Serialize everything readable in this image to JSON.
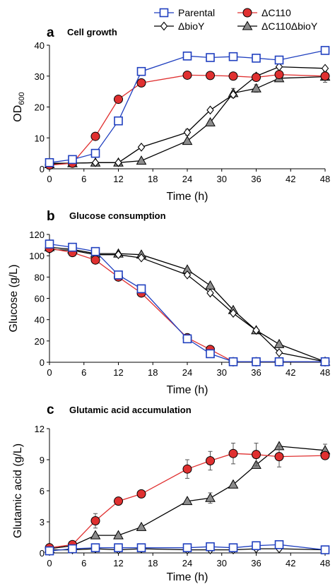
{
  "legend": {
    "items": [
      {
        "name": "Parental",
        "color": "#1f3fbf",
        "marker": "square"
      },
      {
        "name": "ΔC110",
        "color": "#e03030",
        "marker": "circle"
      },
      {
        "name": "ΔbioY",
        "color": "#000000",
        "marker": "diamond"
      },
      {
        "name": "ΔC110ΔbioY",
        "color": "#000000",
        "marker": "triangle"
      }
    ],
    "placement": "top"
  },
  "chart_data": [
    {
      "type": "line",
      "panel": "a",
      "title": "Cell growth",
      "xlabel": "Time (h)",
      "ylabel": "OD",
      "ylabel_sub": "600",
      "xlim": [
        0,
        48
      ],
      "ylim": [
        0,
        40
      ],
      "xticks": [
        0,
        6,
        12,
        18,
        24,
        30,
        36,
        42,
        48
      ],
      "yticks": [
        0,
        10,
        20,
        30,
        40
      ],
      "grid": false,
      "series": [
        {
          "name": "Parental",
          "x": [
            0,
            4,
            8,
            12,
            16,
            24,
            28,
            32,
            36,
            40,
            48
          ],
          "y": [
            2,
            3,
            5,
            15.5,
            31.5,
            36.5,
            36,
            36.3,
            35.8,
            35.2,
            38.3
          ],
          "err": [
            0,
            0,
            0,
            0,
            0,
            1,
            1,
            0,
            1,
            0,
            0
          ]
        },
        {
          "name": "ΔC110",
          "x": [
            0,
            4,
            8,
            12,
            16,
            24,
            28,
            32,
            36,
            40,
            48
          ],
          "y": [
            1.2,
            1.8,
            10.5,
            22.5,
            27.8,
            30.3,
            30.2,
            30,
            29.6,
            30.5,
            30
          ]
        },
        {
          "name": "ΔbioY",
          "x": [
            0,
            4,
            8,
            12,
            16,
            24,
            28,
            32,
            36,
            40,
            48
          ],
          "y": [
            1.8,
            1.8,
            2,
            2,
            7,
            11.8,
            19,
            24,
            30,
            33,
            32.5
          ],
          "err": [
            0,
            0,
            0,
            0,
            0,
            1,
            0,
            0,
            0,
            0,
            0
          ]
        },
        {
          "name": "ΔC110ΔbioY",
          "x": [
            0,
            4,
            8,
            12,
            16,
            24,
            28,
            32,
            36,
            40,
            48
          ],
          "y": [
            1.5,
            1.8,
            2,
            2,
            2.6,
            9,
            15,
            24.5,
            26,
            29.3,
            29.8
          ],
          "err": [
            0,
            0,
            0,
            0,
            0,
            0,
            0,
            1.5,
            1.2,
            0,
            1.8
          ]
        }
      ]
    },
    {
      "type": "line",
      "panel": "b",
      "title": "Glucose consumption",
      "xlabel": "Time (h)",
      "ylabel": "Glucose (g/L)",
      "xlim": [
        0,
        48
      ],
      "ylim": [
        0,
        120
      ],
      "xticks": [
        0,
        6,
        12,
        18,
        24,
        30,
        36,
        42,
        48
      ],
      "yticks": [
        0,
        20,
        40,
        60,
        80,
        100,
        120
      ],
      "grid": false,
      "series": [
        {
          "name": "Parental",
          "x": [
            0,
            4,
            8,
            12,
            16,
            24,
            28,
            32,
            36,
            40,
            48
          ],
          "y": [
            111,
            108,
            104,
            82,
            69,
            22,
            8,
            0.5,
            0.5,
            0.5,
            0.5
          ]
        },
        {
          "name": "ΔC110",
          "x": [
            0,
            4,
            8,
            12,
            16,
            24,
            28,
            32,
            36,
            40,
            48
          ],
          "y": [
            107,
            103,
            96,
            80,
            65,
            23,
            12,
            0.5,
            0.5,
            0.5,
            0.5
          ]
        },
        {
          "name": "ΔbioY",
          "x": [
            0,
            4,
            8,
            12,
            16,
            24,
            28,
            32,
            36,
            40,
            48
          ],
          "y": [
            106,
            105,
            101,
            101,
            98,
            82,
            65,
            46,
            30,
            9,
            0.5
          ]
        },
        {
          "name": "ΔC110ΔbioY",
          "x": [
            0,
            4,
            8,
            12,
            16,
            24,
            28,
            32,
            36,
            40,
            48
          ],
          "y": [
            108,
            106,
            102,
            102,
            101,
            87,
            72,
            49,
            30,
            17,
            0.5
          ]
        }
      ]
    },
    {
      "type": "line",
      "panel": "c",
      "title": "Glutamic acid accumulation",
      "xlabel": "Time (h)",
      "ylabel": "Glutamic acid (g/L)",
      "xlim": [
        0,
        48
      ],
      "ylim": [
        0,
        12
      ],
      "xticks": [
        0,
        6,
        12,
        18,
        24,
        30,
        36,
        42,
        48
      ],
      "yticks": [
        0,
        3,
        6,
        9,
        12
      ],
      "grid": false,
      "series": [
        {
          "name": "Parental",
          "x": [
            0,
            4,
            8,
            12,
            16,
            24,
            28,
            32,
            36,
            40,
            48
          ],
          "y": [
            0.2,
            0.4,
            0.5,
            0.5,
            0.5,
            0.5,
            0.6,
            0.5,
            0.7,
            0.8,
            0.3
          ]
        },
        {
          "name": "ΔC110",
          "x": [
            0,
            4,
            8,
            12,
            16,
            24,
            28,
            32,
            36,
            40,
            48
          ],
          "y": [
            0.5,
            0.8,
            3.1,
            5,
            5.7,
            8.1,
            8.9,
            9.6,
            9.5,
            9.3,
            9.4
          ],
          "err": [
            0,
            0,
            0.7,
            0,
            0,
            0.9,
            0.9,
            1,
            1.1,
            1,
            0
          ]
        },
        {
          "name": "ΔbioY",
          "x": [
            0,
            4,
            8,
            12,
            16,
            24,
            28,
            32,
            36,
            40,
            48
          ],
          "y": [
            0.3,
            0.3,
            0.4,
            0.3,
            0.4,
            0.3,
            0.3,
            0.3,
            0.4,
            0.4,
            0.3
          ]
        },
        {
          "name": "ΔC110ΔbioY",
          "x": [
            0,
            4,
            8,
            12,
            16,
            24,
            28,
            32,
            36,
            40,
            48
          ],
          "y": [
            0.4,
            0.7,
            1.7,
            1.7,
            2.5,
            5,
            5.3,
            6.6,
            8.5,
            10.3,
            9.9
          ],
          "err": [
            0,
            0,
            0,
            0,
            0,
            0,
            0.5,
            0,
            0,
            0,
            0.6
          ]
        }
      ]
    }
  ]
}
